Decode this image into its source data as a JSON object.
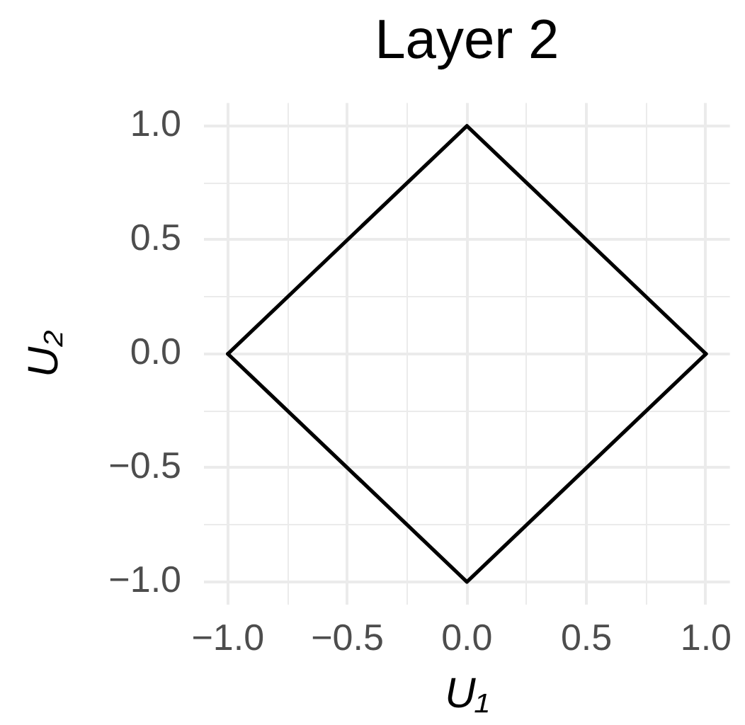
{
  "chart_data": {
    "type": "line",
    "title": "Layer 2",
    "xlabel": "U₁",
    "ylabel": "U₂",
    "x": [
      -1,
      0,
      1
    ],
    "series": [
      {
        "color": "#000000",
        "values": [
          0,
          1,
          0
        ]
      },
      {
        "color": "#000000",
        "values": [
          0,
          -1,
          0
        ]
      }
    ],
    "xlim": [
      -1.1,
      1.1
    ],
    "ylim": [
      -1.1,
      1.1
    ],
    "xticks": [
      {
        "value": -1,
        "label": "−1.0"
      },
      {
        "value": -0.75,
        "label": null
      },
      {
        "value": -0.5,
        "label": "−0.5"
      },
      {
        "value": -0.25,
        "label": null
      },
      {
        "value": 0,
        "label": "0.0"
      },
      {
        "value": 0.25,
        "label": null
      },
      0.5,
      {
        "value": 0.75,
        "label": null
      },
      {
        "value": 1,
        "label": "1.0"
      }
    ],
    "yticks": [
      {
        "value": -1,
        "label": "−1.0"
      },
      {
        "value": -0.75,
        "label": null
      },
      {
        "value": -0.5,
        "label": "−0.5"
      },
      {
        "value": -0.25,
        "label": null
      },
      {
        "value": 0,
        "label": "0.0"
      },
      {
        "value": 0.25,
        "label": null
      },
      0.5,
      {
        "value": 0.75,
        "label": null
      },
      {
        "value": 1,
        "label": "1.0"
      }
    ],
    "grid": true,
    "line_style": "solid"
  }
}
